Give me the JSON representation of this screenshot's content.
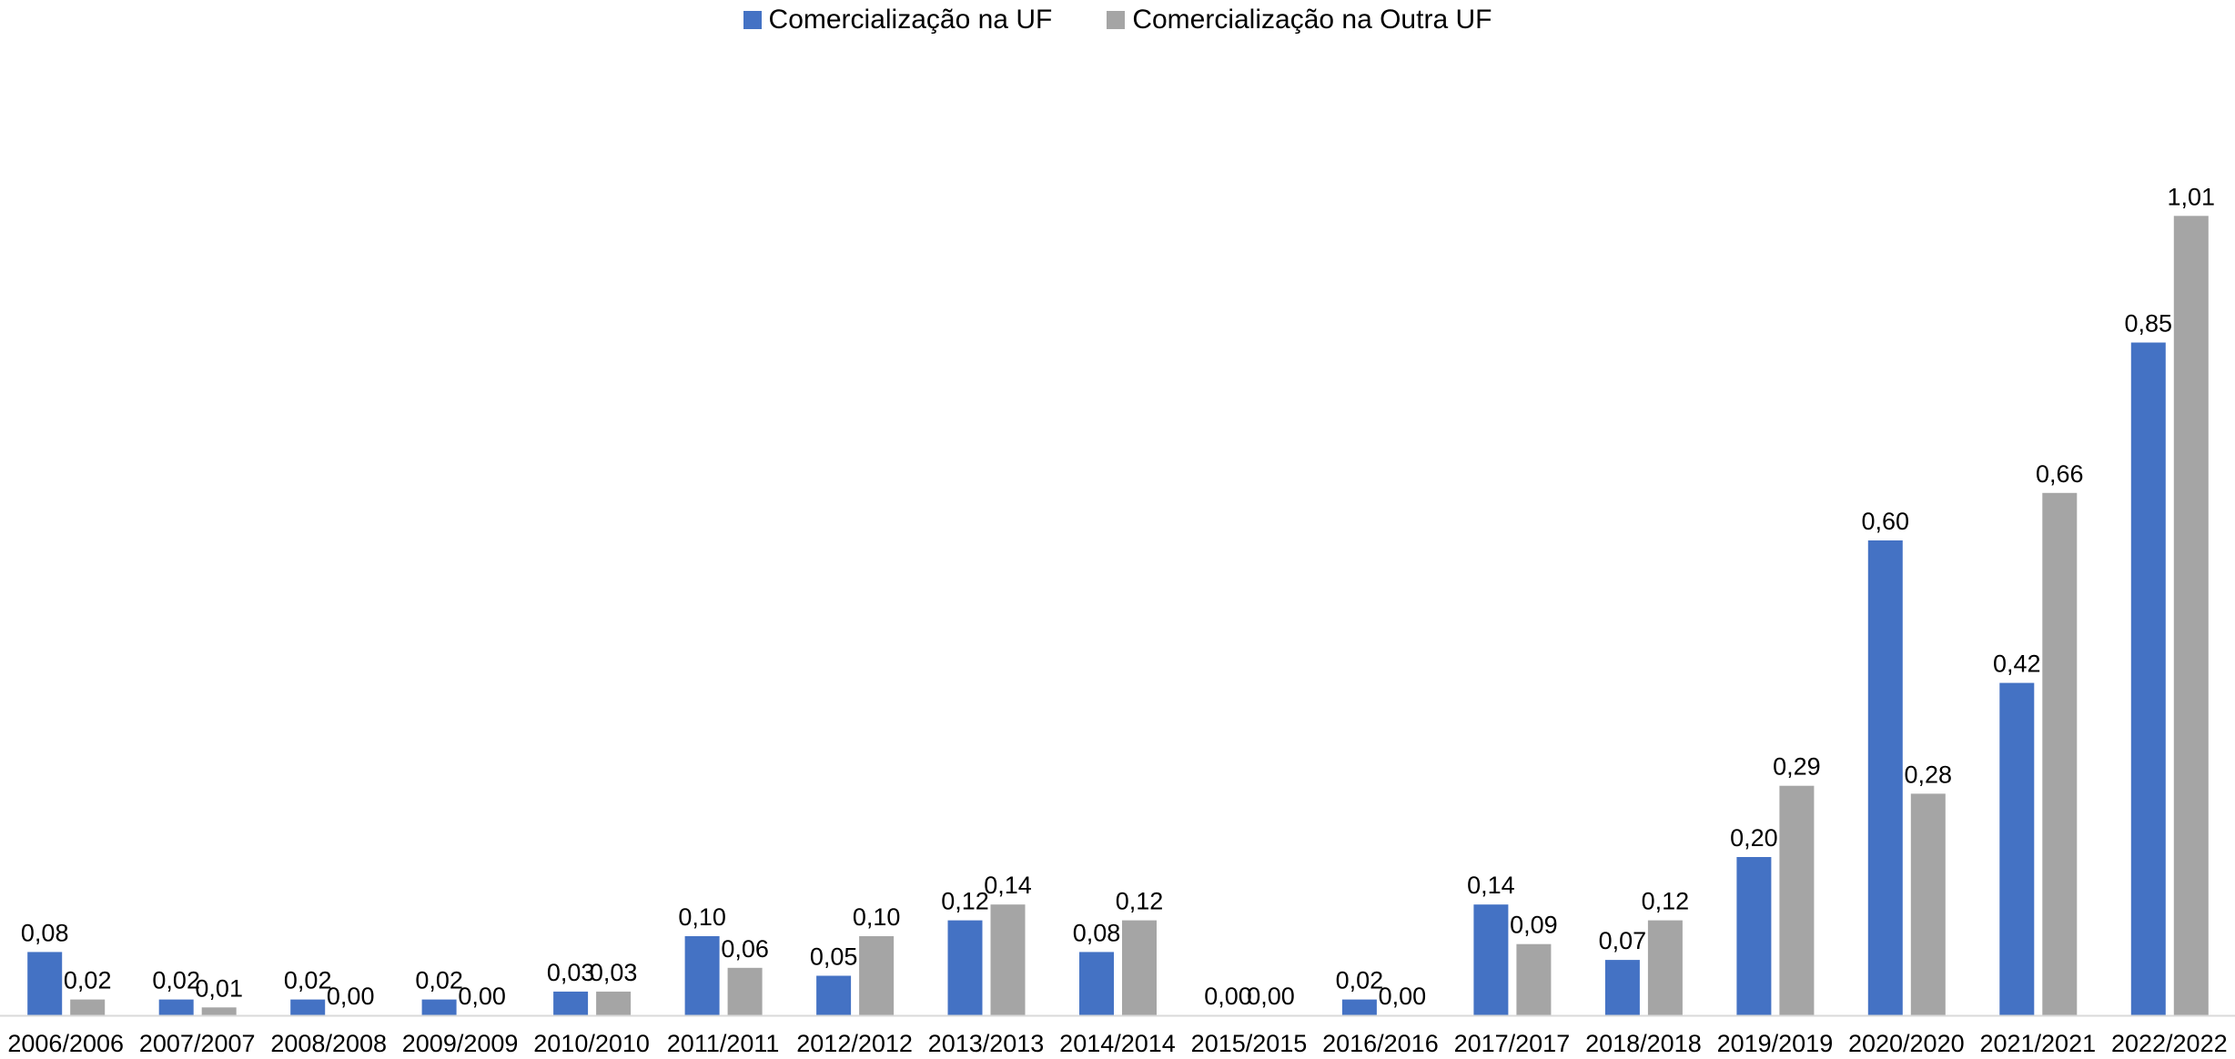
{
  "chart_data": {
    "type": "bar",
    "title": "",
    "xlabel": "",
    "ylabel": "",
    "ylim": [
      0,
      1.1
    ],
    "grid": false,
    "legend_position": "top-center",
    "categories": [
      "2006/2006",
      "2007/2007",
      "2008/2008",
      "2009/2009",
      "2010/2010",
      "2011/2011",
      "2012/2012",
      "2013/2013",
      "2014/2014",
      "2015/2015",
      "2016/2016",
      "2017/2017",
      "2018/2018",
      "2019/2019",
      "2020/2020",
      "2021/2021",
      "2022/2022"
    ],
    "series": [
      {
        "name": "Comercialização na UF",
        "color": "#4472C4",
        "values": [
          0.08,
          0.02,
          0.02,
          0.02,
          0.03,
          0.1,
          0.05,
          0.12,
          0.08,
          0.0,
          0.02,
          0.14,
          0.07,
          0.2,
          0.6,
          0.42,
          0.85
        ],
        "labels": [
          "0,08",
          "0,02",
          "0,02",
          "0,02",
          "0,03",
          "0,10",
          "0,05",
          "0,12",
          "0,08",
          "0,00",
          "0,02",
          "0,14",
          "0,07",
          "0,20",
          "0,60",
          "0,42",
          "0,85"
        ]
      },
      {
        "name": "Comercialização na Outra UF",
        "color": "#A5A5A5",
        "values": [
          0.02,
          0.01,
          0.0,
          0.0,
          0.03,
          0.06,
          0.1,
          0.14,
          0.12,
          0.0,
          0.0,
          0.09,
          0.12,
          0.29,
          0.28,
          0.66,
          1.01
        ],
        "labels": [
          "0,02",
          "0,01",
          "0,00",
          "0,00",
          "0,03",
          "0,06",
          "0,10",
          "0,14",
          "0,12",
          "0,00",
          "0,00",
          "0,09",
          "0,12",
          "0,29",
          "0,28",
          "0,66",
          "1,01"
        ]
      }
    ]
  }
}
